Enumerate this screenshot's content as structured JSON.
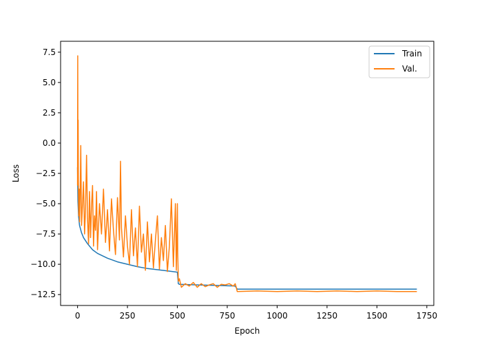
{
  "chart_data": {
    "type": "line",
    "title": "",
    "xlabel": "Epoch",
    "ylabel": "Loss",
    "xlim": [
      -85,
      1785
    ],
    "ylim": [
      -13.4,
      8.4
    ],
    "xticks": [
      0,
      250,
      500,
      750,
      1000,
      1250,
      1500,
      1750
    ],
    "xtick_labels": [
      "0",
      "250",
      "500",
      "750",
      "1000",
      "1250",
      "1500",
      "1750"
    ],
    "yticks": [
      -12.5,
      -10.0,
      -7.5,
      -5.0,
      -2.5,
      0.0,
      2.5,
      5.0,
      7.5
    ],
    "ytick_labels": [
      "−12.5",
      "−10.0",
      "−7.5",
      "−5.0",
      "−2.5",
      "0.0",
      "2.5",
      "5.0",
      "7.5"
    ],
    "grid": false,
    "legend_position": "top-right",
    "series": [
      {
        "name": "Train",
        "color": "#1f77b4",
        "x": [
          0,
          2,
          5,
          10,
          20,
          30,
          50,
          75,
          100,
          150,
          200,
          250,
          300,
          350,
          400,
          450,
          500,
          505,
          510,
          600,
          700,
          790,
          800,
          1000,
          1250,
          1500,
          1700
        ],
        "y": [
          -2.0,
          -4.8,
          -6.0,
          -6.8,
          -7.4,
          -7.8,
          -8.3,
          -8.8,
          -9.1,
          -9.5,
          -9.8,
          -10.0,
          -10.2,
          -10.35,
          -10.45,
          -10.55,
          -10.65,
          -11.6,
          -11.65,
          -11.7,
          -11.75,
          -11.8,
          -12.05,
          -12.05,
          -12.05,
          -12.05,
          -12.05
        ]
      },
      {
        "name": "Val.",
        "color": "#ff7f0e",
        "x": [
          0,
          1,
          2,
          3,
          4,
          6,
          8,
          10,
          13,
          16,
          20,
          25,
          30,
          35,
          40,
          45,
          50,
          55,
          60,
          65,
          70,
          75,
          80,
          85,
          90,
          95,
          100,
          110,
          120,
          130,
          140,
          150,
          160,
          170,
          180,
          190,
          200,
          210,
          215,
          220,
          230,
          240,
          250,
          260,
          270,
          280,
          290,
          300,
          310,
          320,
          330,
          340,
          350,
          360,
          370,
          380,
          390,
          400,
          410,
          420,
          430,
          440,
          450,
          460,
          470,
          480,
          490,
          495,
          500,
          502,
          505,
          510,
          520,
          540,
          560,
          580,
          600,
          620,
          640,
          660,
          680,
          700,
          720,
          740,
          760,
          780,
          790,
          795,
          800,
          900,
          1000,
          1100,
          1200,
          1300,
          1400,
          1500,
          1600,
          1700
        ],
        "y": [
          -3.5,
          7.2,
          -2.0,
          1.9,
          -3.0,
          -6.0,
          -3.8,
          -6.5,
          -4.2,
          -0.2,
          -6.8,
          -5.0,
          -3.2,
          -7.5,
          -5.5,
          -1.0,
          -6.2,
          -8.3,
          -4.0,
          -7.8,
          -5.2,
          -3.5,
          -8.5,
          -6.0,
          -7.2,
          -4.0,
          -8.8,
          -5.0,
          -7.5,
          -3.8,
          -8.2,
          -5.5,
          -8.9,
          -4.6,
          -7.2,
          -9.2,
          -4.5,
          -8.0,
          -1.5,
          -7.0,
          -9.4,
          -6.0,
          -8.5,
          -10.0,
          -5.5,
          -9.3,
          -7.0,
          -10.2,
          -5.2,
          -9.0,
          -7.5,
          -10.5,
          -6.5,
          -9.8,
          -7.5,
          -10.3,
          -8.0,
          -6.0,
          -10.4,
          -7.8,
          -9.7,
          -6.8,
          -10.6,
          -8.5,
          -4.6,
          -10.2,
          -5.0,
          -10.5,
          -5.0,
          -9.0,
          -11.4,
          -11.2,
          -11.9,
          -11.6,
          -11.8,
          -11.5,
          -11.9,
          -11.6,
          -11.85,
          -11.7,
          -11.6,
          -11.9,
          -11.65,
          -11.7,
          -11.6,
          -11.8,
          -11.6,
          -11.9,
          -12.25,
          -12.2,
          -12.25,
          -12.2,
          -12.25,
          -12.2,
          -12.25,
          -12.2,
          -12.25,
          -12.25
        ]
      }
    ]
  }
}
